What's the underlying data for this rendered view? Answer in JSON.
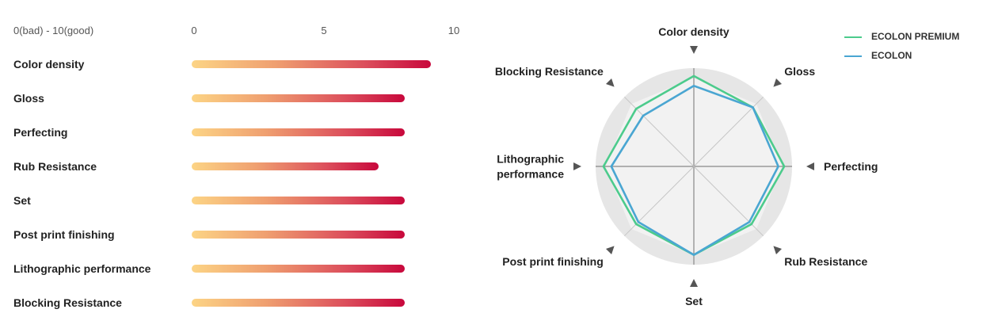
{
  "chart_data": [
    {
      "type": "bar",
      "orientation": "horizontal",
      "scale_caption": "0(bad) - 10(good)",
      "xlim": [
        0,
        10
      ],
      "ticks": [
        "0",
        "5",
        "10"
      ],
      "categories": [
        "Color density",
        "Gloss",
        "Perfecting",
        "Rub Resistance",
        "Set",
        "Post print finishing",
        "Lithographic performance",
        "Blocking Resistance"
      ],
      "values": [
        9.2,
        8.2,
        8.2,
        7.2,
        8.2,
        8.2,
        8.2,
        8.2
      ],
      "color_start": "#fcd485",
      "color_end": "#c8083c"
    },
    {
      "type": "radar",
      "axes": [
        "Color density",
        "Gloss",
        "Perfecting",
        "Rub Resistance",
        "Set",
        "Post print finishing",
        "Lithographic performance",
        "Blocking Resistance"
      ],
      "axis_label_lines": [
        [
          "Color density"
        ],
        [
          "Gloss"
        ],
        [
          "Perfecting"
        ],
        [
          "Rub Resistance"
        ],
        [
          "Set"
        ],
        [
          "Post print finishing"
        ],
        [
          "Lithographic",
          "performance"
        ],
        [
          "Blocking Resistance"
        ]
      ],
      "range": [
        0,
        10
      ],
      "series": [
        {
          "name": "ECOLON PREMIUM",
          "color": "#4ccb8c",
          "values": [
            9.2,
            8.5,
            9.2,
            8.3,
            9.0,
            8.3,
            9.2,
            8.3
          ]
        },
        {
          "name": "ECOLON",
          "color": "#4aa6d2",
          "values": [
            8.2,
            8.5,
            8.6,
            8.0,
            9.0,
            8.0,
            8.4,
            7.3
          ]
        }
      ],
      "legend_position": "top-right"
    }
  ]
}
